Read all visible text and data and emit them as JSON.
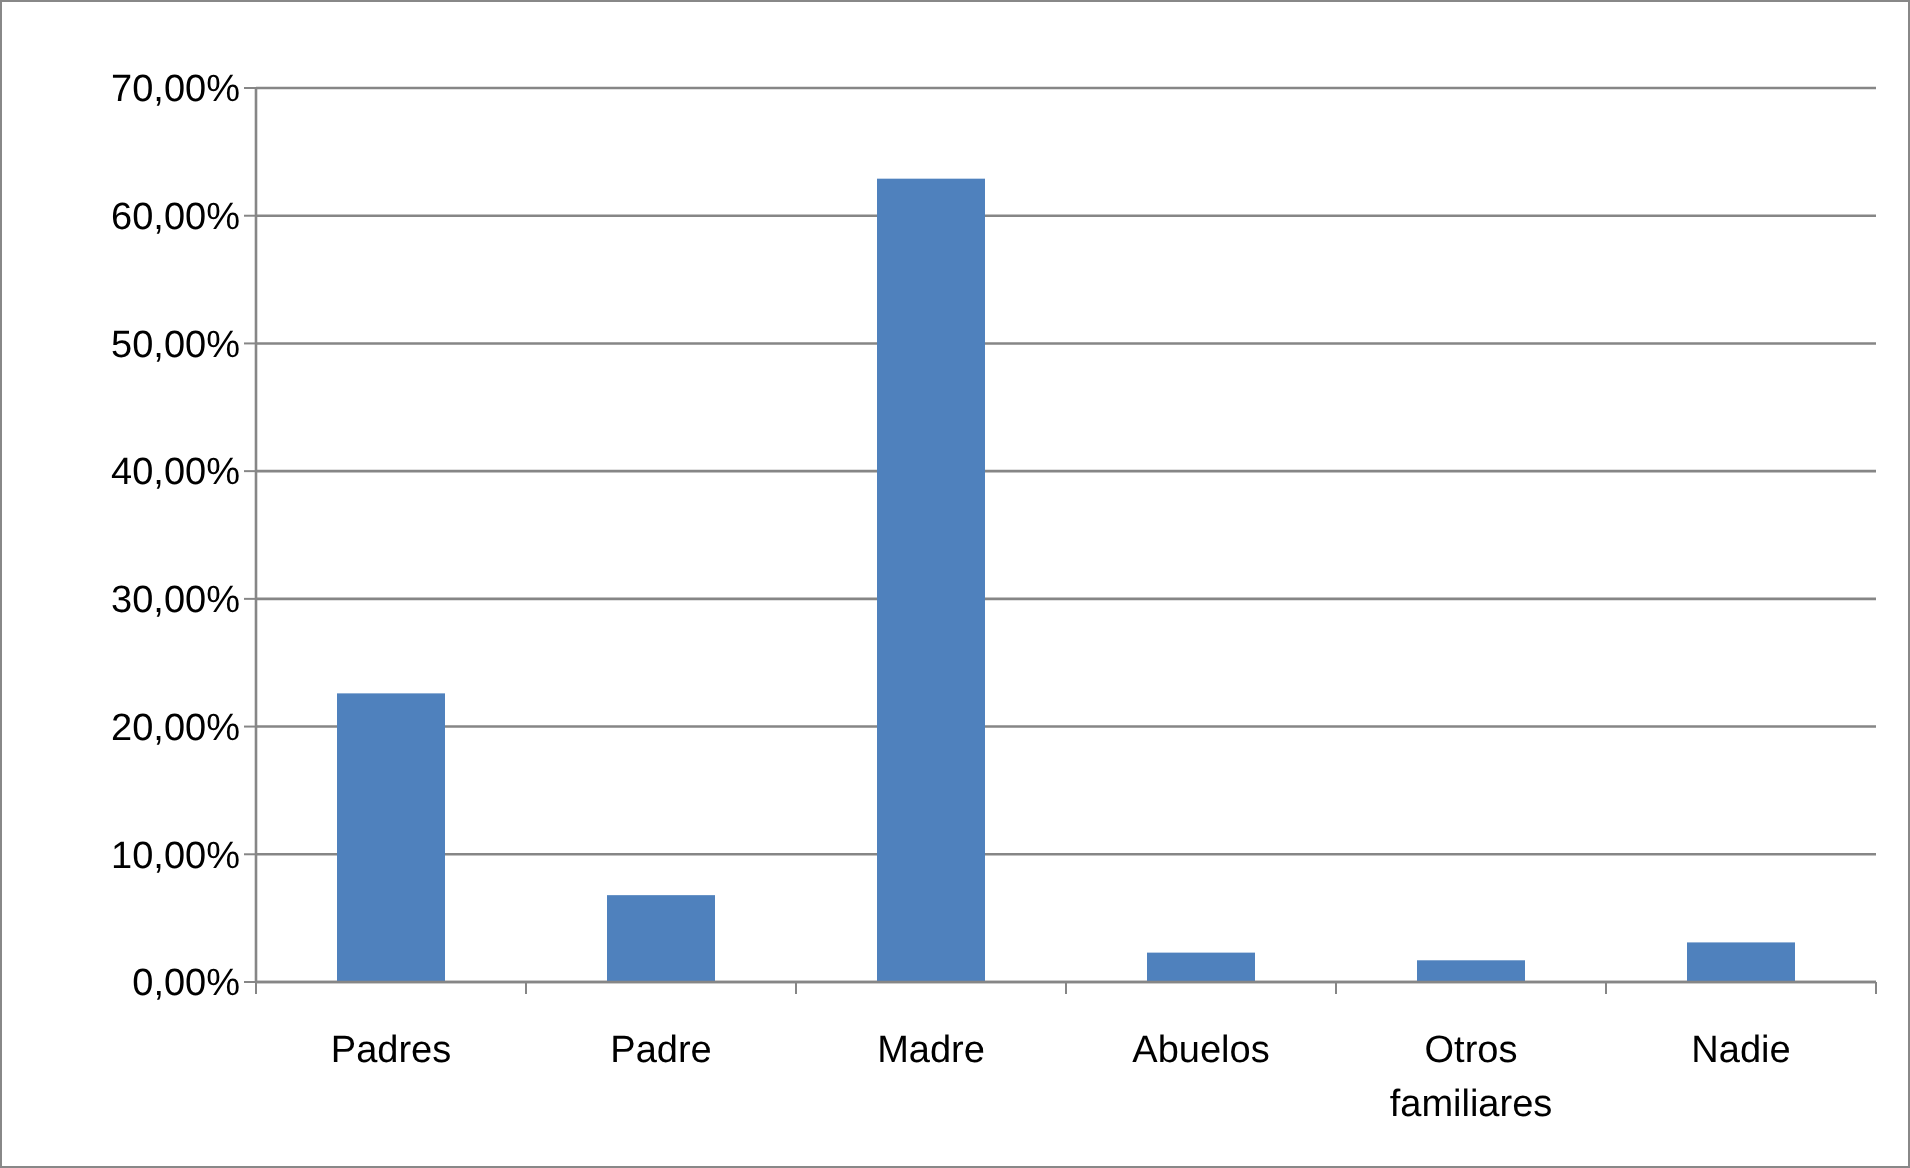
{
  "chart_data": {
    "type": "bar",
    "categories": [
      "Padres",
      "Padre",
      "Madre",
      "Abuelos",
      "Otros familiares",
      "Nadie"
    ],
    "values": [
      22.6,
      6.8,
      62.9,
      2.3,
      1.7,
      3.1
    ],
    "color": "#4f81bd",
    "ylim": [
      0,
      70
    ],
    "yticks": [
      {
        "value": 0,
        "label": "0,00%"
      },
      {
        "value": 10,
        "label": "10,00%"
      },
      {
        "value": 20,
        "label": "20,00%"
      },
      {
        "value": 30,
        "label": "30,00%"
      },
      {
        "value": 40,
        "label": "40,00%"
      },
      {
        "value": 50,
        "label": "50,00%"
      },
      {
        "value": 60,
        "label": "60,00%"
      },
      {
        "value": 70,
        "label": "70,00%"
      }
    ],
    "grid": "y"
  }
}
